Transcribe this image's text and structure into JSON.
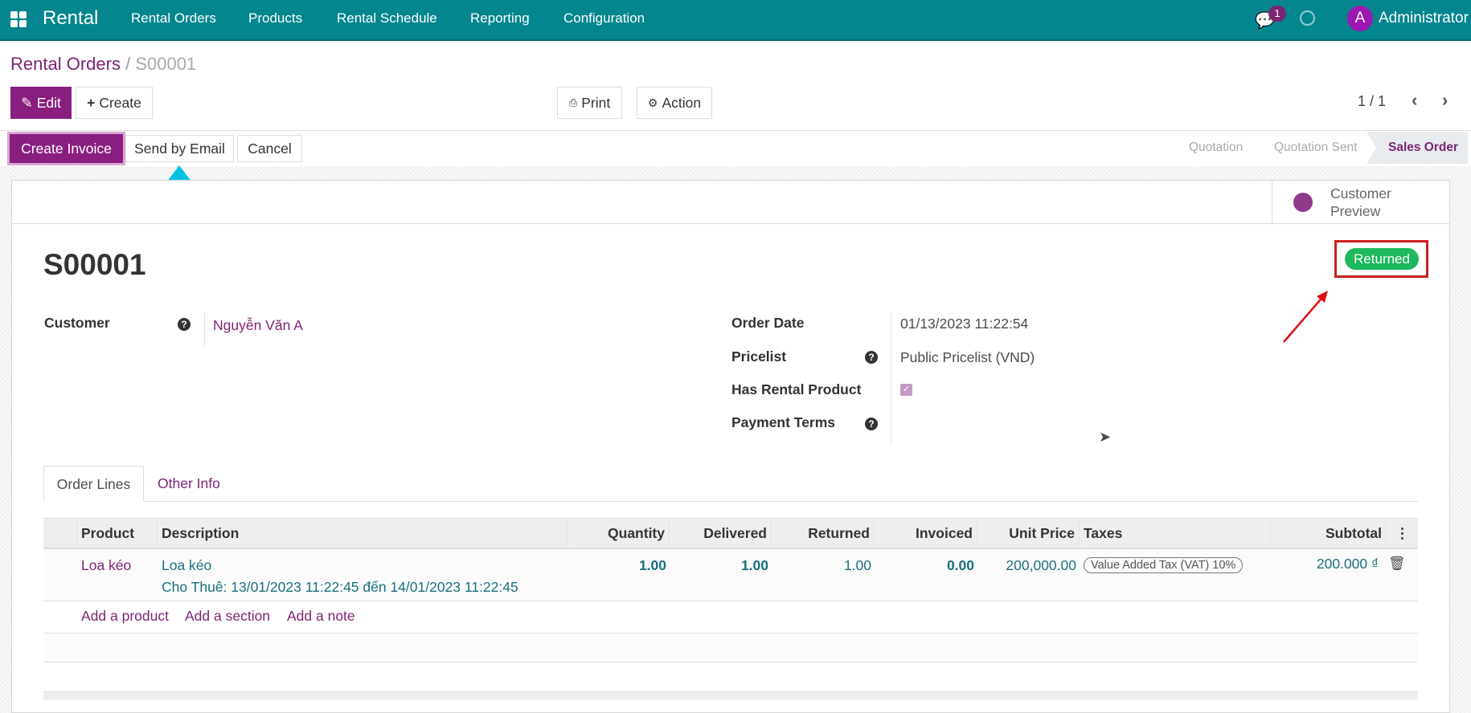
{
  "navbar": {
    "app": "Rental",
    "menus": [
      "Rental Orders",
      "Products",
      "Rental Schedule",
      "Reporting",
      "Configuration"
    ],
    "chat_count": "1",
    "avatar_letter": "A",
    "user": "Administrator",
    "color": "#03868e"
  },
  "breadcrumb": {
    "parent": "Rental Orders",
    "current": "S00001"
  },
  "toolbar": {
    "edit": "Edit",
    "create": "Create",
    "print": "Print",
    "action": "Action",
    "pager": "1 / 1"
  },
  "statusbar": {
    "create_invoice": "Create Invoice",
    "send_email": "Send by Email",
    "cancel": "Cancel",
    "stages": [
      "Quotation",
      "Quotation Sent",
      "Sales Order"
    ],
    "active_stage": "Sales Order"
  },
  "sheet": {
    "customer_preview": [
      "Customer",
      "Preview"
    ],
    "title": "S00001",
    "ribbon": "Returned",
    "fields": {
      "customer_label": "Customer",
      "customer_value": "Nguyễn Văn A",
      "order_date_label": "Order Date",
      "order_date_value": "01/13/2023 11:22:54",
      "pricelist_label": "Pricelist",
      "pricelist_value": "Public Pricelist (VND)",
      "has_rental_label": "Has Rental Product",
      "has_rental_checked": true,
      "payment_terms_label": "Payment Terms"
    },
    "tabs": [
      "Order Lines",
      "Other Info"
    ],
    "table": {
      "headers": [
        "Product",
        "Description",
        "Quantity",
        "Delivered",
        "Returned",
        "Invoiced",
        "Unit Price",
        "Taxes",
        "Subtotal"
      ],
      "rows": [
        {
          "product": "Loa kéo",
          "description": "Loa kéo",
          "description2": "Cho Thuê: 13/01/2023 11:22:45 đến 14/01/2023 11:22:45",
          "quantity": "1.00",
          "delivered": "1.00",
          "returned": "1.00",
          "invoiced": "0.00",
          "unit_price": "200,000.00",
          "tax": "Value Added Tax (VAT) 10%",
          "subtotal": "200.000 ₫"
        }
      ],
      "add_links": [
        "Add a product",
        "Add a section",
        "Add a note"
      ]
    }
  }
}
